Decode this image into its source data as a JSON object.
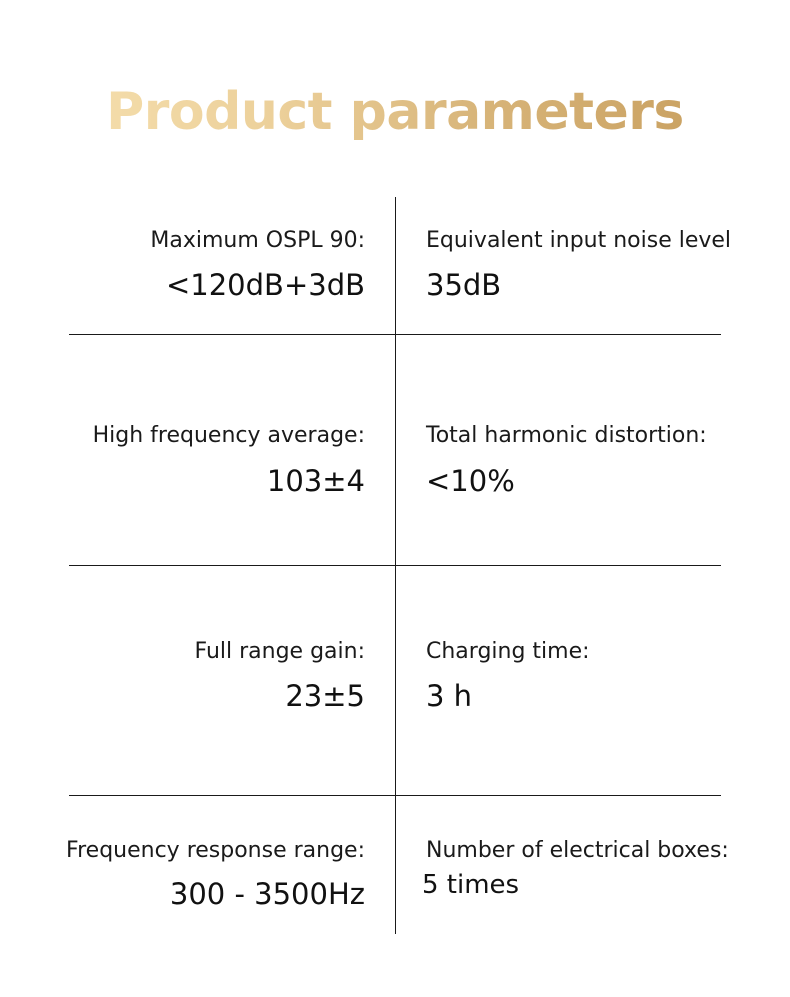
{
  "title": "Product parameters",
  "params": [
    {
      "left": {
        "label": "Maximum OSPL 90:",
        "value": "<120dB+3dB"
      },
      "right": {
        "label": "Equivalent input noise level",
        "value": "35dB"
      }
    },
    {
      "left": {
        "label": "High frequency average:",
        "value": "103±4"
      },
      "right": {
        "label": "Total harmonic distortion:",
        "value": "<10%"
      }
    },
    {
      "left": {
        "label": "Full range gain:",
        "value": "23±5"
      },
      "right": {
        "label": "Charging time:",
        "value": "3 h"
      }
    },
    {
      "left": {
        "label": "Frequency response range:",
        "value": "300 - 3500Hz"
      },
      "right": {
        "label": "Number of electrical boxes:",
        "value": "5 times"
      }
    }
  ],
  "colors": {
    "title_gradient": [
      "#f8e3b3",
      "#ecd09a",
      "#d8b57a",
      "#c49a58"
    ],
    "text": "#111111",
    "rules": "#1a1a1a"
  }
}
